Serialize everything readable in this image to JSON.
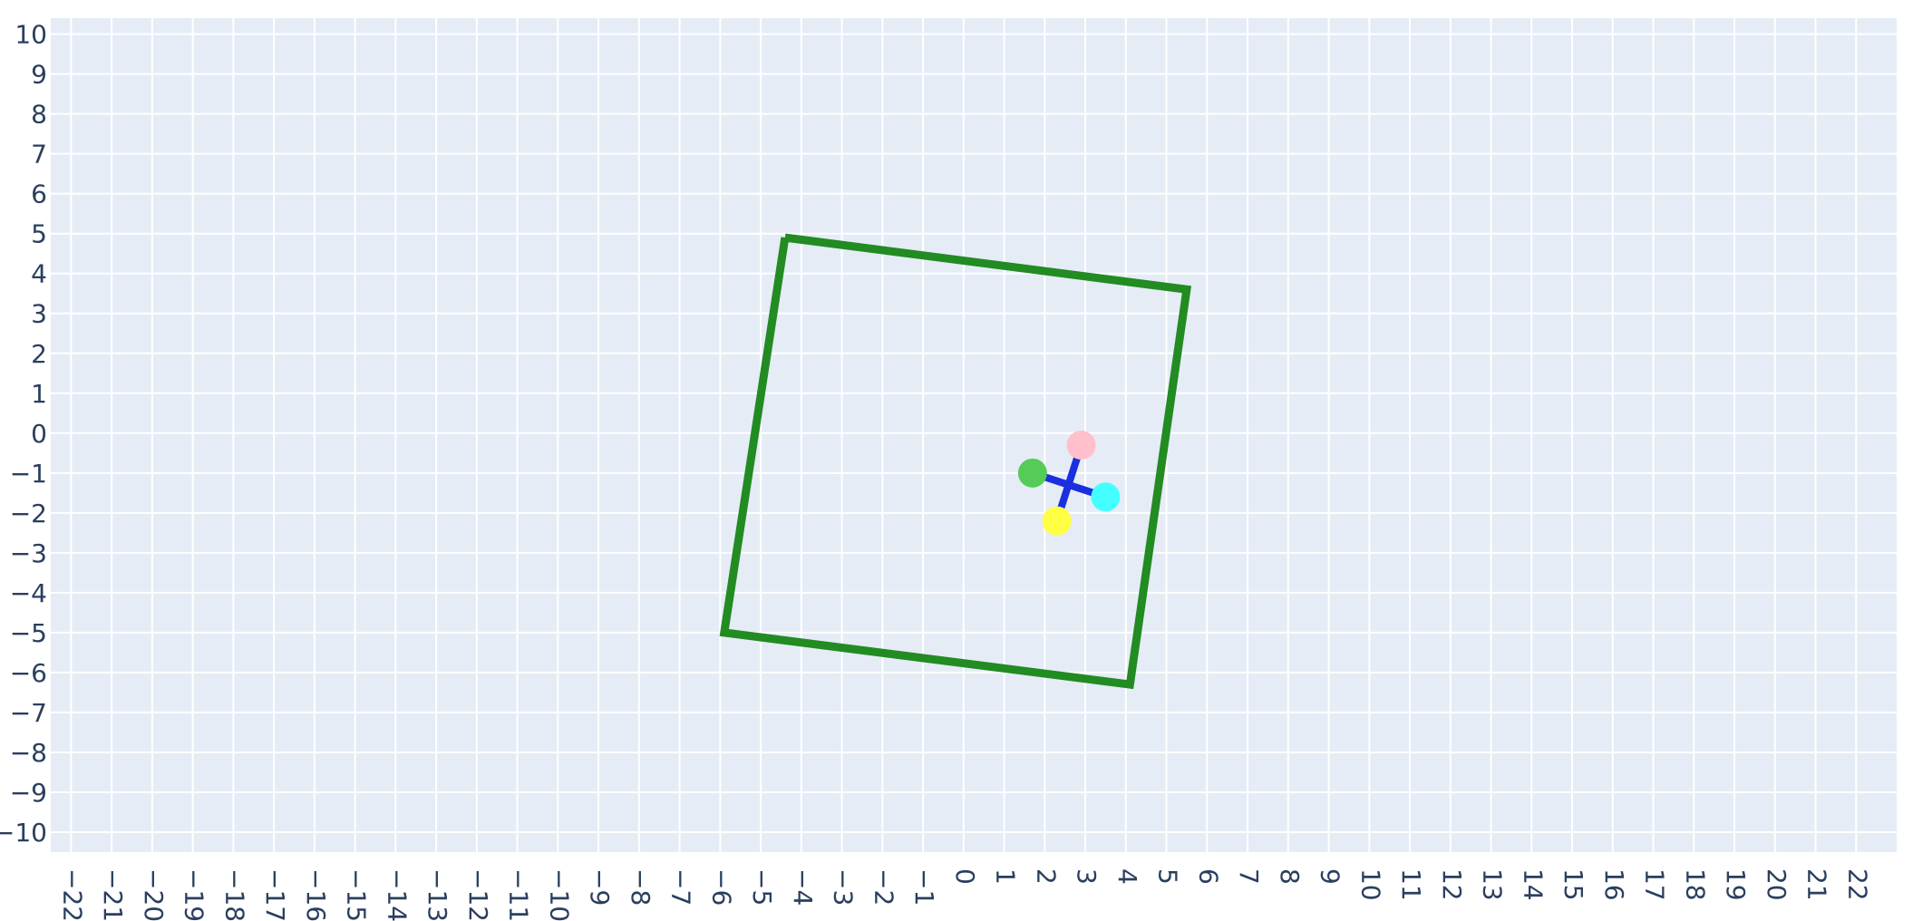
{
  "chart_data": {
    "type": "scatter",
    "title": "",
    "xlabel": "",
    "ylabel": "",
    "xlim": [
      -22.5,
      23.0
    ],
    "ylim": [
      -10.5,
      10.4
    ],
    "grid": true,
    "x_ticks": [
      -22,
      -21,
      -20,
      -19,
      -18,
      -17,
      -16,
      -15,
      -14,
      -13,
      -12,
      -11,
      -10,
      -9,
      -8,
      -7,
      -6,
      -5,
      -4,
      -3,
      -2,
      -1,
      0,
      1,
      2,
      3,
      4,
      5,
      6,
      7,
      8,
      9,
      10,
      11,
      12,
      13,
      14,
      15,
      16,
      17,
      18,
      19,
      20,
      21,
      22
    ],
    "x_tick_labels": [
      "−22",
      "−21",
      "−20",
      "−19",
      "−18",
      "−17",
      "−16",
      "−15",
      "−14",
      "−13",
      "−12",
      "−11",
      "−10",
      "−9",
      "−8",
      "−7",
      "−6",
      "−5",
      "−4",
      "−3",
      "−2",
      "−1",
      "0",
      "1",
      "2",
      "3",
      "4",
      "5",
      "6",
      "7",
      "8",
      "9",
      "10",
      "11",
      "12",
      "13",
      "14",
      "15",
      "16",
      "17",
      "18",
      "19",
      "20",
      "21",
      "22"
    ],
    "y_ticks": [
      10,
      9,
      8,
      7,
      6,
      5,
      4,
      3,
      2,
      1,
      0,
      -1,
      -2,
      -3,
      -4,
      -5,
      -6,
      -7,
      -8,
      -9,
      -10
    ],
    "y_tick_labels": [
      "10",
      "9",
      "8",
      "7",
      "6",
      "5",
      "4",
      "3",
      "2",
      "1",
      "0",
      "−1",
      "−2",
      "−3",
      "−4",
      "−5",
      "−6",
      "−7",
      "−8",
      "−9",
      "−10"
    ],
    "colors": {
      "background": "#e5ecf6",
      "grid": "#ffffff",
      "square": "#228b22",
      "cross": "#1a2fe0",
      "tick_text": "#2a3f5f"
    },
    "series": [
      {
        "type": "line",
        "color": "#228b22",
        "x": [
          -4.4,
          5.5,
          4.1,
          -5.9,
          -4.4
        ],
        "y": [
          4.9,
          3.6,
          -6.3,
          -5.0,
          4.9
        ]
      },
      {
        "type": "line",
        "color": "#1a2fe0",
        "x": [
          1.7,
          3.5
        ],
        "y": [
          -1.0,
          -1.6
        ]
      },
      {
        "type": "line",
        "color": "#1a2fe0",
        "x": [
          2.9,
          2.3
        ],
        "y": [
          -0.3,
          -2.2
        ]
      },
      {
        "type": "scatter",
        "x": [
          2.9,
          1.7,
          3.5,
          2.3
        ],
        "y": [
          -0.3,
          -1.0,
          -1.6,
          -2.2
        ],
        "colors": [
          "#ffc0cb",
          "#55cc55",
          "#44ffff",
          "#ffff44"
        ]
      }
    ]
  }
}
